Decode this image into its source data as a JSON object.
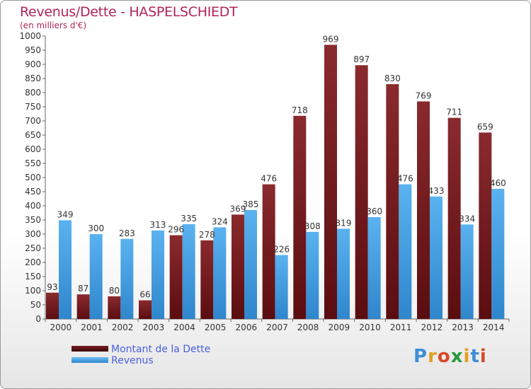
{
  "header": {
    "title": "Revenus/Dette - HASPELSCHIEDT",
    "subtitle": "(en milliers d'€)"
  },
  "chart_data": {
    "type": "bar",
    "title": "Revenus/Dette - HASPELSCHIEDT",
    "subtitle": "(en milliers d'€)",
    "categories": [
      "2000",
      "2001",
      "2002",
      "2003",
      "2004",
      "2005",
      "2006",
      "2007",
      "2008",
      "2009",
      "2010",
      "2011",
      "2012",
      "2013",
      "2014"
    ],
    "series": [
      {
        "name": "Montant de la Dette",
        "color": "#7a1e22",
        "values": [
          93,
          87,
          80,
          66,
          296,
          278,
          369,
          476,
          718,
          969,
          897,
          830,
          769,
          711,
          659
        ]
      },
      {
        "name": "Revenus",
        "color": "#3a9ae0",
        "values": [
          349,
          300,
          283,
          313,
          335,
          324,
          385,
          226,
          308,
          319,
          360,
          476,
          433,
          334,
          460
        ]
      }
    ],
    "ylim": [
      0,
      1000
    ],
    "ytick_step": 50,
    "grid": false,
    "legend_position": "bottom-left"
  },
  "legend": {
    "items": [
      {
        "label": "Montant de la Dette",
        "color": "#6e1216"
      },
      {
        "label": "Revenus",
        "color": "#3d9be6"
      }
    ]
  },
  "logo": {
    "text": "Proxiti",
    "colors": [
      "#3d8fd6",
      "#e0a020",
      "#d64a2a",
      "#2a9a3a",
      "#e0a020",
      "#3d8fd6",
      "#d64a2a"
    ]
  }
}
